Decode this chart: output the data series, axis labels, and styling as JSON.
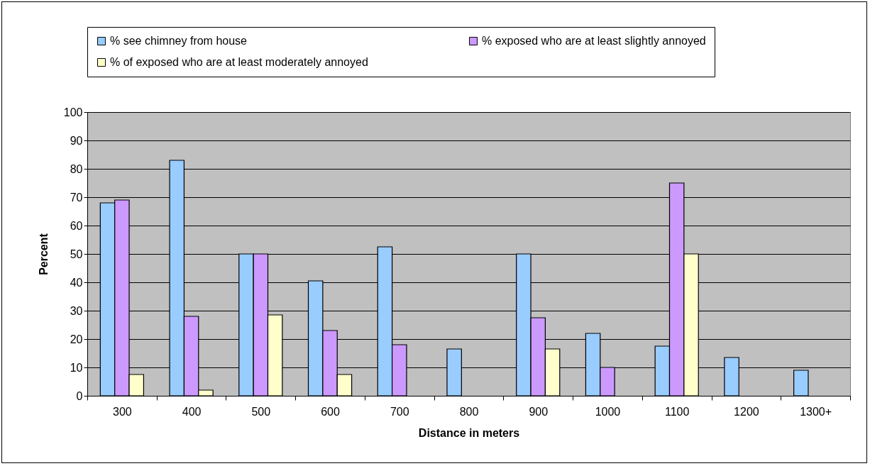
{
  "chart_data": {
    "type": "bar",
    "xlabel": "Distance in meters",
    "ylabel": "Percent",
    "categories": [
      "300",
      "400",
      "500",
      "600",
      "700",
      "800",
      "900",
      "1000",
      "1100",
      "1200",
      "1300+"
    ],
    "series": [
      {
        "name": "% see chimney from house",
        "color": "#99ccff",
        "values": [
          68,
          83,
          50,
          40.5,
          52.5,
          16.5,
          50,
          22,
          17.5,
          13.5,
          9
        ]
      },
      {
        "name": "% exposed who are at least slightly annoyed",
        "color": "#cc99ff",
        "values": [
          69,
          28,
          50,
          23,
          18,
          null,
          27.5,
          10,
          75,
          null,
          null
        ]
      },
      {
        "name": "% of exposed who are at least moderately annoyed",
        "color": "#ffffcc",
        "values": [
          7.5,
          2,
          28.5,
          7.5,
          null,
          null,
          16.5,
          null,
          50,
          null,
          null
        ]
      }
    ],
    "ylim": [
      0,
      100
    ],
    "yticks": [
      0,
      10,
      20,
      30,
      40,
      50,
      60,
      70,
      80,
      90,
      100
    ],
    "grid": "y",
    "legend": "top"
  }
}
